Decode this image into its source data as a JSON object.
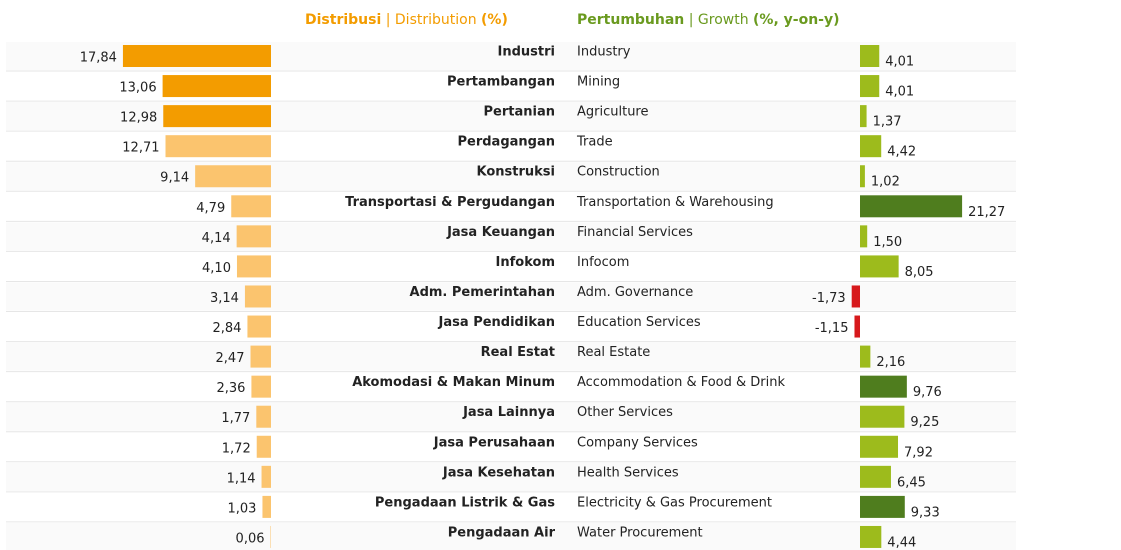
{
  "chart_data": {
    "type": "diverging-bar",
    "categories": [
      "Industri",
      "Pertambangan",
      "Pertanian",
      "Perdagangan",
      "Konstruksi",
      "Transportasi & Pergudangan",
      "Jasa Keuangan",
      "Infokom",
      "Adm. Pemerintahan",
      "Jasa Pendidikan",
      "Real Estat",
      "Akomodasi & Makan Minum",
      "Jasa Lainnya",
      "Jasa Perusahaan",
      "Jasa Kesehatan",
      "Pengadaan Listrik & Gas",
      "Pengadaan Air"
    ],
    "categories_en": [
      "Industry",
      "Mining",
      "Agriculture",
      "Trade",
      "Construction",
      "Transportation & Warehousing",
      "Financial Services",
      "Infocom",
      "Adm. Governance",
      "Education Services",
      "Real Estate",
      "Accommodation & Food & Drink",
      "Other Services",
      "Company Services",
      "Health Services",
      "Electricity & Gas Procurement",
      "Water Procurement"
    ],
    "series": [
      {
        "name": "Distribusi",
        "name_en": "| Distribution",
        "unit": "(%)",
        "color": "#f39c00",
        "values": [
          17.84,
          13.06,
          12.98,
          12.71,
          9.14,
          4.79,
          4.14,
          4.1,
          3.14,
          2.84,
          2.47,
          2.36,
          1.77,
          1.72,
          1.14,
          1.03,
          0.06
        ],
        "value_labels": [
          "17,84",
          "13,06",
          "12,98",
          "12,71",
          "9,14",
          "4,79",
          "4,14",
          "4,10",
          "3,14",
          "2,84",
          "2,47",
          "2,36",
          "1,77",
          "1,72",
          "1,14",
          "1,03",
          "0,06"
        ],
        "colors": [
          "#f39c00",
          "#f39c00",
          "#f39c00",
          "#fbc46e",
          "#fbc46e",
          "#fbc46e",
          "#fbc46e",
          "#fbc46e",
          "#fbc46e",
          "#fbc46e",
          "#fbc46e",
          "#fbc46e",
          "#fbc46e",
          "#fbc46e",
          "#fbc46e",
          "#fbc46e",
          "#fbc46e"
        ]
      },
      {
        "name": "Pertumbuhan",
        "name_en": "| Growth",
        "unit": "(%, y-on-y)",
        "color": "#6a9a1f",
        "values": [
          4.01,
          4.01,
          1.37,
          4.42,
          1.02,
          21.27,
          1.5,
          8.05,
          -1.73,
          -1.15,
          2.16,
          9.76,
          9.25,
          7.92,
          6.45,
          9.33,
          4.44
        ],
        "value_labels": [
          "4,01",
          "4,01",
          "1,37",
          "4,42",
          "1,02",
          "21,27",
          "1,50",
          "8,05",
          "-1,73",
          "-1,15",
          "2,16",
          "9,76",
          "9,25",
          "7,92",
          "6,45",
          "9,33",
          "4,44"
        ],
        "colors": [
          "#9dbb1c",
          "#9dbb1c",
          "#9dbb1c",
          "#9dbb1c",
          "#9dbb1c",
          "#4f7d1e",
          "#9dbb1c",
          "#9dbb1c",
          "#d7191c",
          "#d7191c",
          "#9dbb1c",
          "#4f7d1e",
          "#9dbb1c",
          "#9dbb1c",
          "#9dbb1c",
          "#4f7d1e",
          "#9dbb1c"
        ]
      }
    ]
  }
}
